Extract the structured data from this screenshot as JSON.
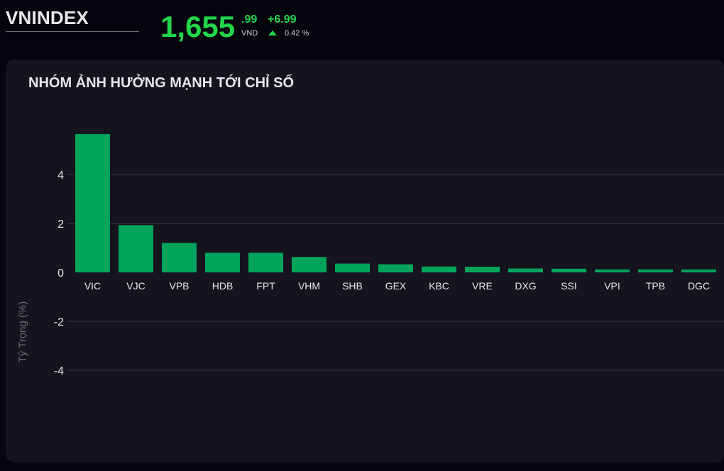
{
  "header": {
    "index_name": "VNINDEX",
    "price_main": "1,655",
    "price_decimal": ".99",
    "unit": "VND",
    "change": "+6.99",
    "change_pct": "0.42 %",
    "direction_icon": "triangle-up-icon",
    "up_color": "#22d64a"
  },
  "panel": {
    "title": "NHÓM ẢNH HƯỞNG MẠNH TỚI CHỈ SỐ"
  },
  "chart_data": {
    "type": "bar",
    "categories": [
      "VIC",
      "VJC",
      "VPB",
      "HDB",
      "FPT",
      "VHM",
      "SHB",
      "GEX",
      "KBC",
      "VRE",
      "DXG",
      "SSI",
      "VPI",
      "TPB",
      "DGC"
    ],
    "values": [
      5.65,
      1.93,
      1.2,
      0.8,
      0.8,
      0.63,
      0.36,
      0.33,
      0.24,
      0.23,
      0.16,
      0.15,
      0.12,
      0.12,
      0.12
    ],
    "ylabel": "Tỷ Trọng (%)",
    "yticks": [
      4,
      2,
      0,
      -2,
      -4
    ],
    "ylim": [
      -5,
      6
    ],
    "grid": true,
    "bar_color": "#02a45c"
  }
}
